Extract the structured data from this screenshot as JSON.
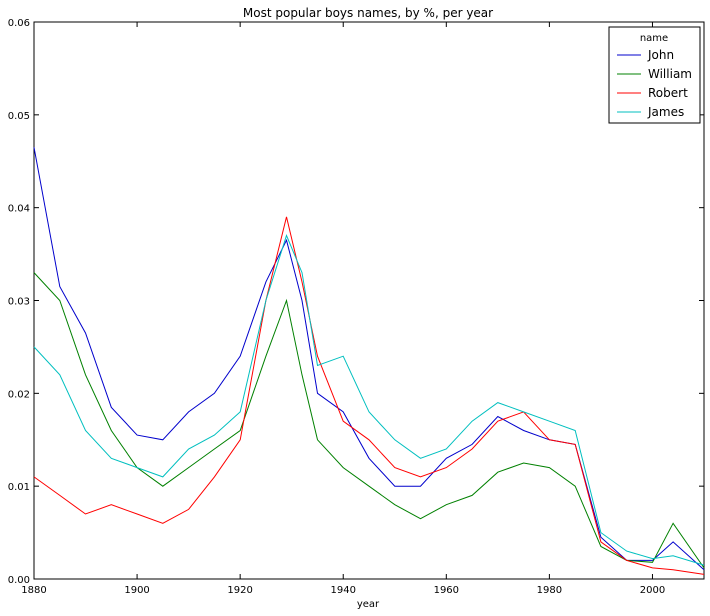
{
  "chart_data": {
    "type": "line",
    "title": "Most popular boys names, by %, per year",
    "xlabel": "year",
    "ylabel": "",
    "xlim": [
      1880,
      2010
    ],
    "ylim": [
      0.0,
      0.06
    ],
    "x_ticks": [
      "1880",
      "1900",
      "1920",
      "1940",
      "1960",
      "1980",
      "2000"
    ],
    "y_ticks": [
      "0.00",
      "0.01",
      "0.02",
      "0.03",
      "0.04",
      "0.05",
      "0.06"
    ],
    "grid": false,
    "legend": {
      "title": "name",
      "placement": "top-right"
    },
    "x": [
      1880,
      1885,
      1890,
      1895,
      1900,
      1905,
      1910,
      1915,
      1920,
      1925,
      1929,
      1932,
      1935,
      1940,
      1945,
      1950,
      1955,
      1960,
      1965,
      1970,
      1975,
      1980,
      1985,
      1990,
      1995,
      2000,
      2004,
      2010
    ],
    "series": [
      {
        "name": "John",
        "color": "#0000cc",
        "values": [
          0.0465,
          0.0315,
          0.0265,
          0.0185,
          0.0155,
          0.015,
          0.018,
          0.02,
          0.024,
          0.032,
          0.0365,
          0.03,
          0.02,
          0.018,
          0.013,
          0.01,
          0.01,
          0.013,
          0.0145,
          0.0175,
          0.016,
          0.015,
          0.0145,
          0.0045,
          0.002,
          0.002,
          0.004,
          0.001
        ]
      },
      {
        "name": "William",
        "color": "#008000",
        "values": [
          0.033,
          0.03,
          0.022,
          0.016,
          0.012,
          0.01,
          0.012,
          0.014,
          0.016,
          0.024,
          0.03,
          0.022,
          0.015,
          0.012,
          0.01,
          0.008,
          0.0065,
          0.008,
          0.009,
          0.0115,
          0.0125,
          0.012,
          0.01,
          0.0035,
          0.002,
          0.0018,
          0.006,
          0.0012
        ]
      },
      {
        "name": "Robert",
        "color": "#ff0000",
        "values": [
          0.011,
          0.009,
          0.007,
          0.008,
          0.007,
          0.006,
          0.0075,
          0.011,
          0.015,
          0.03,
          0.039,
          0.032,
          0.024,
          0.017,
          0.015,
          0.012,
          0.011,
          0.012,
          0.014,
          0.017,
          0.018,
          0.015,
          0.0145,
          0.004,
          0.002,
          0.0012,
          0.001,
          0.0005
        ]
      },
      {
        "name": "James",
        "color": "#00bfbf",
        "values": [
          0.025,
          0.022,
          0.016,
          0.013,
          0.012,
          0.011,
          0.014,
          0.0155,
          0.018,
          0.03,
          0.037,
          0.033,
          0.023,
          0.024,
          0.018,
          0.015,
          0.013,
          0.014,
          0.017,
          0.019,
          0.018,
          0.017,
          0.016,
          0.005,
          0.003,
          0.0022,
          0.0025,
          0.0015
        ]
      }
    ]
  }
}
